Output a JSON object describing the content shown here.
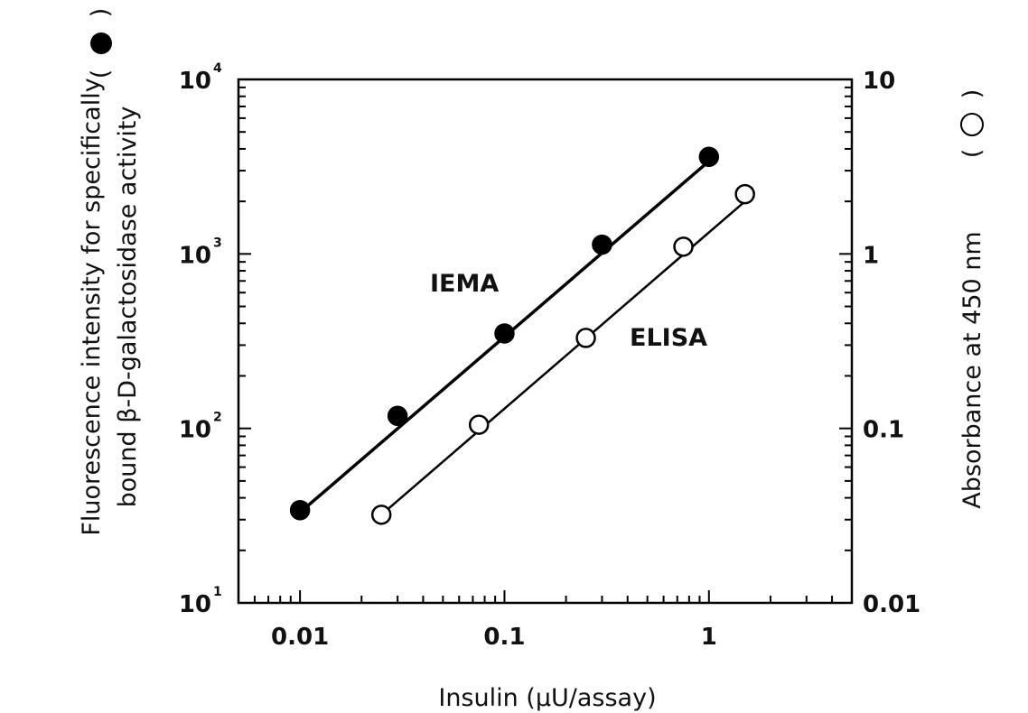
{
  "chart_data": {
    "type": "scatter",
    "title": "",
    "xlabel": "Insulin (µU/assay)",
    "ylabel_left": "Fluorescence intensity for specifically bound β-D-galactosidase activity",
    "ylabel_right": "Absorbance at 450 nm",
    "x_scale": "log",
    "y_left_scale": "log",
    "y_right_scale": "log",
    "xlim": [
      0.005,
      5
    ],
    "ylim_left": [
      10,
      10000
    ],
    "ylim_right": [
      0.01,
      10
    ],
    "grid": false,
    "x_ticks": [
      {
        "value": 0.01,
        "label": "0.01"
      },
      {
        "value": 0.1,
        "label": "0.1"
      },
      {
        "value": 1,
        "label": "1"
      }
    ],
    "y_left_ticks": [
      {
        "value": 10,
        "base": "10",
        "exp": "1"
      },
      {
        "value": 100,
        "base": "10",
        "exp": "2"
      },
      {
        "value": 1000,
        "base": "10",
        "exp": "3"
      },
      {
        "value": 10000,
        "base": "10",
        "exp": "4"
      }
    ],
    "y_right_ticks": [
      {
        "value": 0.01,
        "label": "0.01"
      },
      {
        "value": 0.1,
        "label": "0.1"
      },
      {
        "value": 1,
        "label": "1"
      },
      {
        "value": 10,
        "label": "10"
      }
    ],
    "series": [
      {
        "name": "IEMA",
        "axis": "left",
        "marker": "filled-circle",
        "color": "#000000",
        "x": [
          0.01,
          0.03,
          0.1,
          0.3,
          1
        ],
        "y": [
          34,
          118,
          350,
          1130,
          3600
        ],
        "fit_line": {
          "x": [
            0.01,
            1
          ],
          "y": [
            33,
            3400
          ]
        }
      },
      {
        "name": "ELISA",
        "axis": "right",
        "marker": "open-circle",
        "color": "#000000",
        "x": [
          0.025,
          0.075,
          0.25,
          0.75,
          1.5
        ],
        "y": [
          0.032,
          0.105,
          0.33,
          1.1,
          2.2
        ],
        "fit_line": {
          "x": [
            0.025,
            1.5
          ],
          "y": [
            0.032,
            2.0
          ]
        }
      }
    ]
  }
}
